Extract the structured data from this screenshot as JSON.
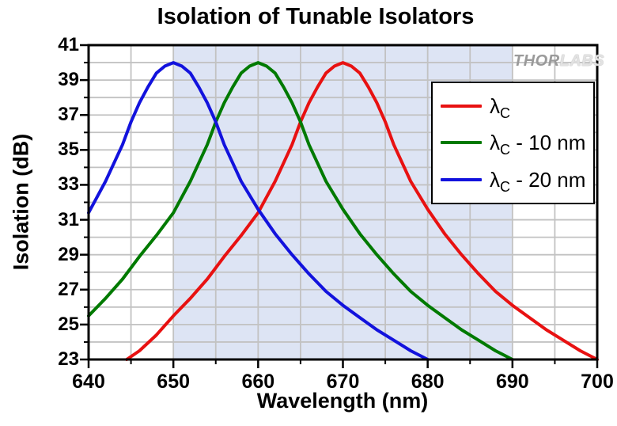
{
  "title": "Isolation of Tunable Isolators",
  "watermark": {
    "thor": "THOR",
    "labs": "LABS"
  },
  "legend": {
    "items": [
      {
        "lambda": "λ",
        "sub": "C",
        "suffix": "",
        "color": "#e81111"
      },
      {
        "lambda": "λ",
        "sub": "C",
        "suffix": " - 10 nm",
        "color": "#007a00"
      },
      {
        "lambda": "λ",
        "sub": "C",
        "suffix": " - 20 nm",
        "color": "#1212dd"
      }
    ]
  },
  "chart_data": {
    "type": "line",
    "title": "Isolation of Tunable Isolators",
    "xlabel": "Wavelength (nm)",
    "ylabel": "Isolation (dB)",
    "xlim": [
      640,
      700
    ],
    "ylim": [
      23,
      41
    ],
    "x_major_ticks": [
      640,
      650,
      660,
      670,
      680,
      690,
      700
    ],
    "x_minor_step": 5,
    "y_major_ticks": [
      23,
      25,
      27,
      29,
      31,
      33,
      35,
      37,
      39,
      41
    ],
    "y_minor_step": 1,
    "grid": {
      "x_step": 5,
      "y_step": 1,
      "color": "#c2c2c2",
      "on": true
    },
    "shaded_band": {
      "x_start": 650,
      "x_end": 690,
      "color": "#dde4f4"
    },
    "legend_position": "upper right",
    "series": [
      {
        "name": "λC",
        "color": "#e81111",
        "peak_nm": 670,
        "peak_db": 40,
        "points": [
          [
            644.5,
            23
          ],
          [
            646,
            23.5
          ],
          [
            648,
            24.4
          ],
          [
            650,
            25.5
          ],
          [
            652,
            26.5
          ],
          [
            654,
            27.6
          ],
          [
            656,
            28.9
          ],
          [
            658,
            30.1
          ],
          [
            660,
            31.4
          ],
          [
            662,
            33.2
          ],
          [
            664,
            35.3
          ],
          [
            665,
            36.6
          ],
          [
            666,
            37.7
          ],
          [
            667,
            38.6
          ],
          [
            668,
            39.4
          ],
          [
            669,
            39.8
          ],
          [
            670,
            40
          ],
          [
            671,
            39.8
          ],
          [
            672,
            39.4
          ],
          [
            673,
            38.6
          ],
          [
            674,
            37.7
          ],
          [
            675,
            36.6
          ],
          [
            676,
            35.3
          ],
          [
            678,
            33.2
          ],
          [
            680,
            31.6
          ],
          [
            682,
            30.2
          ],
          [
            684,
            29.0
          ],
          [
            686,
            27.9
          ],
          [
            688,
            26.9
          ],
          [
            690,
            26.1
          ],
          [
            692,
            25.4
          ],
          [
            694,
            24.7
          ],
          [
            696,
            24.1
          ],
          [
            698,
            23.5
          ],
          [
            700,
            23
          ]
        ]
      },
      {
        "name": "λC - 10 nm",
        "color": "#007a00",
        "peak_nm": 660,
        "peak_db": 40,
        "points": [
          [
            640,
            25.5
          ],
          [
            642,
            26.5
          ],
          [
            644,
            27.6
          ],
          [
            646,
            28.9
          ],
          [
            648,
            30.1
          ],
          [
            650,
            31.4
          ],
          [
            652,
            33.2
          ],
          [
            654,
            35.3
          ],
          [
            655,
            36.6
          ],
          [
            656,
            37.7
          ],
          [
            657,
            38.6
          ],
          [
            658,
            39.4
          ],
          [
            659,
            39.8
          ],
          [
            660,
            40
          ],
          [
            661,
            39.8
          ],
          [
            662,
            39.4
          ],
          [
            663,
            38.6
          ],
          [
            664,
            37.7
          ],
          [
            665,
            36.6
          ],
          [
            666,
            35.3
          ],
          [
            668,
            33.2
          ],
          [
            670,
            31.6
          ],
          [
            672,
            30.2
          ],
          [
            674,
            29.0
          ],
          [
            676,
            27.9
          ],
          [
            678,
            26.9
          ],
          [
            680,
            26.1
          ],
          [
            682,
            25.4
          ],
          [
            684,
            24.7
          ],
          [
            686,
            24.1
          ],
          [
            688,
            23.5
          ],
          [
            690,
            23
          ]
        ]
      },
      {
        "name": "λC - 20 nm",
        "color": "#1212dd",
        "peak_nm": 650,
        "peak_db": 40,
        "points": [
          [
            640,
            31.4
          ],
          [
            642,
            33.2
          ],
          [
            644,
            35.3
          ],
          [
            645,
            36.6
          ],
          [
            646,
            37.7
          ],
          [
            647,
            38.6
          ],
          [
            648,
            39.4
          ],
          [
            649,
            39.8
          ],
          [
            650,
            40
          ],
          [
            651,
            39.8
          ],
          [
            652,
            39.4
          ],
          [
            653,
            38.6
          ],
          [
            654,
            37.7
          ],
          [
            655,
            36.6
          ],
          [
            656,
            35.3
          ],
          [
            658,
            33.2
          ],
          [
            660,
            31.6
          ],
          [
            662,
            30.2
          ],
          [
            664,
            29.0
          ],
          [
            666,
            27.9
          ],
          [
            668,
            26.9
          ],
          [
            670,
            26.1
          ],
          [
            672,
            25.4
          ],
          [
            674,
            24.7
          ],
          [
            676,
            24.1
          ],
          [
            678,
            23.5
          ],
          [
            680,
            23
          ]
        ]
      }
    ]
  }
}
